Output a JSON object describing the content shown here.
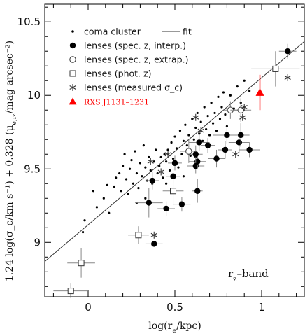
{
  "chart_data": {
    "type": "scatter",
    "xlabel": "log(r_e/kpc)",
    "ylabel": "1.24 log(σ_c/km s⁻¹) + 0.328 (μ_e,r_z/mag arcsec⁻²)",
    "band_label": "r_z–band",
    "xlim": [
      -0.25,
      1.25
    ],
    "ylim": [
      8.63,
      10.62
    ],
    "x_ticks": [
      "0",
      "0.5",
      "1"
    ],
    "x_tick_values": [
      0,
      0.5,
      1
    ],
    "y_ticks": [
      "9",
      "9.5",
      "10",
      "10.5"
    ],
    "y_tick_values": [
      9,
      9.5,
      10,
      10.5
    ],
    "legend": {
      "placement": "top-left",
      "entries": [
        {
          "key": "coma",
          "label": "coma cluster",
          "marker": "small-dot"
        },
        {
          "key": "fit",
          "label": "fit",
          "marker": "line"
        },
        {
          "key": "spec_interp",
          "label": "lenses (spec. z, interp.)",
          "marker": "filled-circle"
        },
        {
          "key": "spec_extrap",
          "label": "lenses (spec. z, extrap.)",
          "marker": "open-circle"
        },
        {
          "key": "phot",
          "label": "lenses (phot. z)",
          "marker": "open-square"
        },
        {
          "key": "measured",
          "label": "lenses (measured σ_c)",
          "marker": "asterisk"
        },
        {
          "key": "rxs",
          "label": "RXS J1131–1231",
          "marker": "red-triangle",
          "color": "#ff0000"
        }
      ]
    },
    "fit_line": {
      "x": [
        -0.25,
        1.25
      ],
      "y": [
        8.87,
        10.37
      ]
    },
    "series": [
      {
        "key": "coma",
        "points": [
          [
            -0.02,
            9.15
          ],
          [
            -0.03,
            9.07
          ],
          [
            0.03,
            9.35
          ],
          [
            0.05,
            9.24
          ],
          [
            0.09,
            9.3
          ],
          [
            0.11,
            9.39
          ],
          [
            0.12,
            9.2
          ],
          [
            0.15,
            9.38
          ],
          [
            0.16,
            9.44
          ],
          [
            0.18,
            9.47
          ],
          [
            0.19,
            9.35
          ],
          [
            0.2,
            9.52
          ],
          [
            0.21,
            9.6
          ],
          [
            0.22,
            9.43
          ],
          [
            0.23,
            9.33
          ],
          [
            0.24,
            9.5
          ],
          [
            0.25,
            9.56
          ],
          [
            0.26,
            9.4
          ],
          [
            0.27,
            9.62
          ],
          [
            0.28,
            9.47
          ],
          [
            0.29,
            9.37
          ],
          [
            0.3,
            9.54
          ],
          [
            0.31,
            9.45
          ],
          [
            0.32,
            9.66
          ],
          [
            0.33,
            9.51
          ],
          [
            0.34,
            9.42
          ],
          [
            0.35,
            9.58
          ],
          [
            0.36,
            9.49
          ],
          [
            0.37,
            9.4
          ],
          [
            0.38,
            9.55
          ],
          [
            0.39,
            9.63
          ],
          [
            0.4,
            9.47
          ],
          [
            0.41,
            9.52
          ],
          [
            0.42,
            9.58
          ],
          [
            0.43,
            9.44
          ],
          [
            0.44,
            9.6
          ],
          [
            0.45,
            9.55
          ],
          [
            0.46,
            9.63
          ],
          [
            0.47,
            9.49
          ],
          [
            0.48,
            9.68
          ],
          [
            0.49,
            9.57
          ],
          [
            0.5,
            9.72
          ],
          [
            0.51,
            9.64
          ],
          [
            0.52,
            9.51
          ],
          [
            0.53,
            9.76
          ],
          [
            0.54,
            9.6
          ],
          [
            0.55,
            9.69
          ],
          [
            0.56,
            9.8
          ],
          [
            0.57,
            9.66
          ],
          [
            0.58,
            9.73
          ],
          [
            0.59,
            9.59
          ],
          [
            0.6,
            9.84
          ],
          [
            0.61,
            9.7
          ],
          [
            0.62,
            9.78
          ],
          [
            0.63,
            9.88
          ],
          [
            0.64,
            9.74
          ],
          [
            0.65,
            9.82
          ],
          [
            0.66,
            9.69
          ],
          [
            0.67,
            9.92
          ],
          [
            0.68,
            9.77
          ],
          [
            0.69,
            9.86
          ],
          [
            0.7,
            9.73
          ],
          [
            0.71,
            9.95
          ],
          [
            0.72,
            9.81
          ],
          [
            0.73,
            9.88
          ],
          [
            0.74,
            9.76
          ],
          [
            0.75,
            9.99
          ],
          [
            0.76,
            9.84
          ],
          [
            0.77,
            9.92
          ],
          [
            0.78,
            10.02
          ],
          [
            0.79,
            9.87
          ],
          [
            0.8,
            9.79
          ],
          [
            0.82,
            10.0
          ],
          [
            0.84,
            9.91
          ],
          [
            0.86,
            10.06
          ],
          [
            0.88,
            9.95
          ],
          [
            0.9,
            10.1
          ],
          [
            0.93,
            10.03
          ],
          [
            0.55,
            9.45
          ],
          [
            0.45,
            9.4
          ],
          [
            0.62,
            9.58
          ],
          [
            0.33,
            9.3
          ],
          [
            0.28,
            9.27
          ]
        ]
      },
      {
        "key": "spec_interp",
        "points": [
          {
            "x": 0.38,
            "y": 8.99,
            "xerr": 0.05,
            "yerr": 0.0
          },
          {
            "x": 0.45,
            "y": 9.23,
            "xerr": 0.05,
            "yerr": 0.05
          },
          {
            "x": 0.35,
            "y": 9.27,
            "xerr": 0.08,
            "yerr": 0.1
          },
          {
            "x": 0.54,
            "y": 9.26,
            "xerr": 0.05,
            "yerr": 0.05
          },
          {
            "x": 0.37,
            "y": 9.42,
            "xerr": 0.04,
            "yerr": 0.06
          },
          {
            "x": 0.49,
            "y": 9.45,
            "xerr": 0.04,
            "yerr": 0.05
          },
          {
            "x": 0.5,
            "y": 9.54,
            "xerr": 0.04,
            "yerr": 0.05
          },
          {
            "x": 0.63,
            "y": 9.35,
            "xerr": 0.03,
            "yerr": 0.08
          },
          {
            "x": 0.62,
            "y": 9.52,
            "xerr": 0.05,
            "yerr": 0.05
          },
          {
            "x": 0.63,
            "y": 9.55,
            "xerr": 0.05,
            "yerr": 0.05
          },
          {
            "x": 0.62,
            "y": 9.6,
            "xerr": 0.04,
            "yerr": 0.06
          },
          {
            "x": 0.64,
            "y": 9.68,
            "xerr": 0.06,
            "yerr": 0.06
          },
          {
            "x": 0.69,
            "y": 9.66,
            "xerr": 0.04,
            "yerr": 0.05
          },
          {
            "x": 0.74,
            "y": 9.57,
            "xerr": 0.05,
            "yerr": 0.06
          },
          {
            "x": 0.79,
            "y": 9.63,
            "xerr": 0.04,
            "yerr": 0.06
          },
          {
            "x": 0.8,
            "y": 9.73,
            "xerr": 0.08,
            "yerr": 0.06
          },
          {
            "x": 0.87,
            "y": 9.68,
            "xerr": 0.06,
            "yerr": 0.07
          },
          {
            "x": 0.88,
            "y": 9.73,
            "xerr": 0.05,
            "yerr": 0.08
          },
          {
            "x": 0.93,
            "y": 9.63,
            "xerr": 0.06,
            "yerr": 0.05
          },
          {
            "x": 1.15,
            "y": 10.3,
            "xerr": 0.05,
            "yerr": 0.05
          }
        ]
      },
      {
        "key": "spec_extrap",
        "points": [
          {
            "x": 0.58,
            "y": 9.62,
            "xerr": 0.05,
            "yerr": 0.08
          },
          {
            "x": 0.82,
            "y": 9.9,
            "xerr": 0.04,
            "yerr": 0.06
          },
          {
            "x": 0.88,
            "y": 9.9,
            "xerr": 0.06,
            "yerr": 0.08
          }
        ]
      },
      {
        "key": "phot",
        "points": [
          {
            "x": -0.1,
            "y": 8.67,
            "xerr": 0.1,
            "yerr": 0.05
          },
          {
            "x": -0.04,
            "y": 8.86,
            "xerr": 0.08,
            "yerr": 0.1
          },
          {
            "x": 0.29,
            "y": 9.05,
            "xerr": 0.06,
            "yerr": 0.06
          },
          {
            "x": 0.49,
            "y": 9.35,
            "xerr": 0.06,
            "yerr": 0.1
          },
          {
            "x": 1.08,
            "y": 10.18,
            "xerr": 0.14,
            "yerr": 0.12
          }
        ]
      },
      {
        "key": "measured",
        "points": [
          [
            0.38,
            9.05
          ],
          [
            0.36,
            9.55
          ],
          [
            0.42,
            9.48
          ],
          [
            0.46,
            9.6
          ],
          [
            0.62,
            9.85
          ],
          [
            0.65,
            9.76
          ],
          [
            0.85,
            9.6
          ],
          [
            0.89,
            9.85
          ],
          [
            0.9,
            9.92
          ],
          [
            1.15,
            10.12
          ]
        ]
      },
      {
        "key": "rxs",
        "points": [
          {
            "x": 0.99,
            "y": 10.02,
            "yerr": 0.12
          }
        ]
      }
    ]
  }
}
